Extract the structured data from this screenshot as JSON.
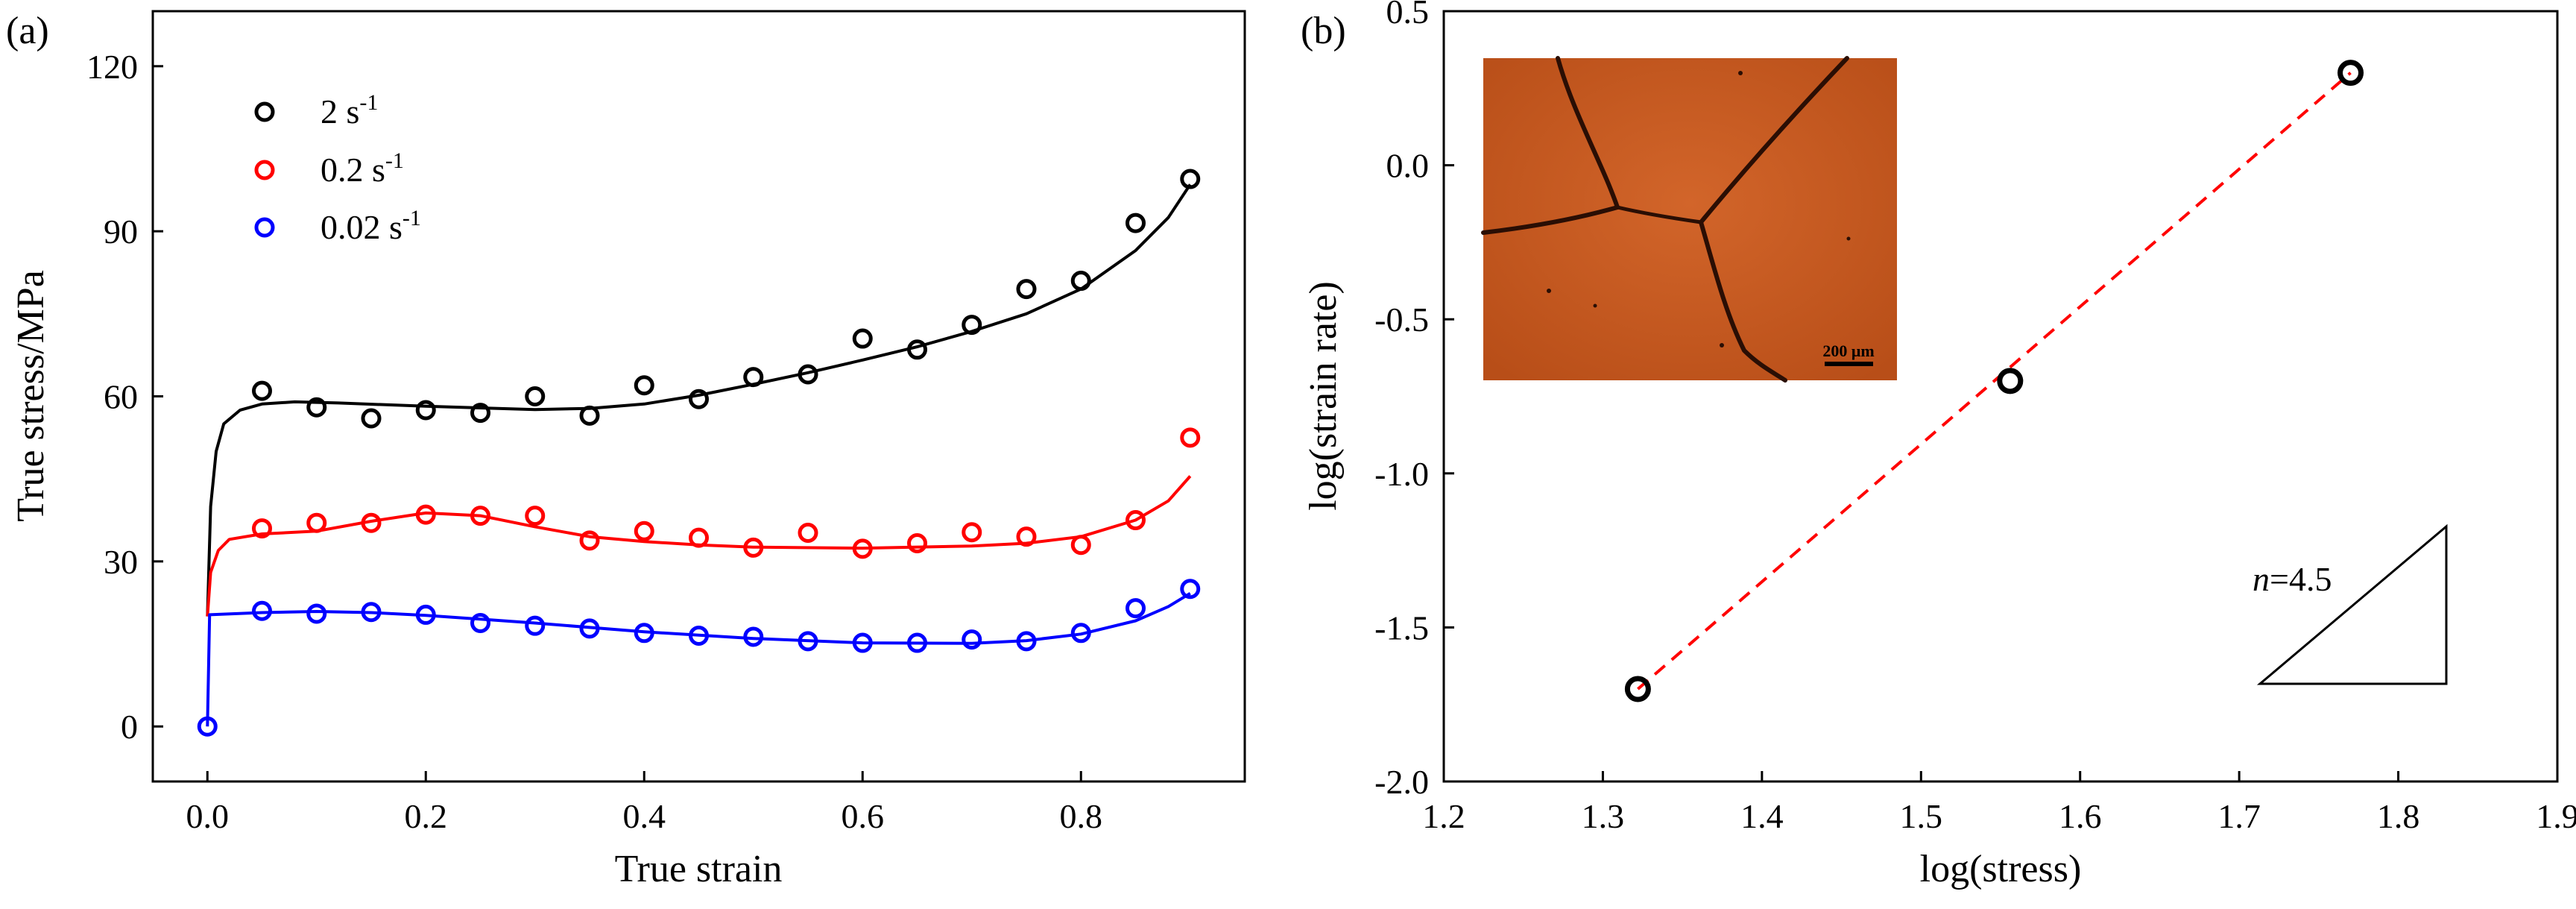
{
  "chart_data": [
    {
      "panel_label": "(a)",
      "type": "line",
      "xlabel": "True strain",
      "ylabel": "True stress/MPa",
      "xlim": [
        -0.05,
        0.95
      ],
      "ylim": [
        -10,
        130
      ],
      "x_ticks": [
        "0.0",
        "0.2",
        "0.4",
        "0.6",
        "0.8"
      ],
      "x_tick_values": [
        0,
        0.2,
        0.4,
        0.6,
        0.8
      ],
      "y_ticks": [
        "0",
        "30",
        "60",
        "90",
        "120"
      ],
      "y_tick_values": [
        0,
        30,
        60,
        90,
        120
      ],
      "legend_position": "top-left",
      "series": [
        {
          "name": "2 s-1",
          "legend_base": "2 s",
          "legend_sup": "-1",
          "color": "#000000",
          "points": [
            [
              0.05,
              61
            ],
            [
              0.1,
              58
            ],
            [
              0.15,
              56
            ],
            [
              0.2,
              57.5
            ],
            [
              0.25,
              57
            ],
            [
              0.3,
              60
            ],
            [
              0.35,
              56.5
            ],
            [
              0.4,
              62
            ],
            [
              0.45,
              59.5
            ],
            [
              0.5,
              63.5
            ],
            [
              0.55,
              64
            ],
            [
              0.6,
              70.5
            ],
            [
              0.65,
              68.5
            ],
            [
              0.7,
              73
            ],
            [
              0.75,
              79.5
            ],
            [
              0.8,
              81
            ],
            [
              0.85,
              91.5
            ],
            [
              0.9,
              99.5
            ]
          ],
          "fit": [
            [
              0,
              20
            ],
            [
              0.003,
              40
            ],
            [
              0.008,
              50
            ],
            [
              0.015,
              55
            ],
            [
              0.03,
              57.5
            ],
            [
              0.05,
              58.6
            ],
            [
              0.08,
              59
            ],
            [
              0.12,
              58.8
            ],
            [
              0.2,
              58.2
            ],
            [
              0.3,
              57.6
            ],
            [
              0.35,
              57.8
            ],
            [
              0.4,
              58.6
            ],
            [
              0.45,
              60.2
            ],
            [
              0.5,
              62.2
            ],
            [
              0.55,
              64.3
            ],
            [
              0.6,
              66.6
            ],
            [
              0.65,
              69
            ],
            [
              0.7,
              71.8
            ],
            [
              0.75,
              75
            ],
            [
              0.8,
              79.5
            ],
            [
              0.85,
              86.5
            ],
            [
              0.88,
              92.5
            ],
            [
              0.9,
              98.5
            ]
          ]
        },
        {
          "name": "0.2 s-1",
          "legend_base": "0.2 s",
          "legend_sup": "-1",
          "color": "#ff0000",
          "points": [
            [
              0.05,
              36
            ],
            [
              0.1,
              37
            ],
            [
              0.15,
              37
            ],
            [
              0.2,
              38.5
            ],
            [
              0.25,
              38.3
            ],
            [
              0.3,
              38.3
            ],
            [
              0.35,
              33.8
            ],
            [
              0.4,
              35.5
            ],
            [
              0.45,
              34.3
            ],
            [
              0.5,
              32.5
            ],
            [
              0.55,
              35.2
            ],
            [
              0.6,
              32.3
            ],
            [
              0.65,
              33.3
            ],
            [
              0.7,
              35.3
            ],
            [
              0.75,
              34.5
            ],
            [
              0.8,
              33
            ],
            [
              0.85,
              37.5
            ],
            [
              0.9,
              52.5
            ]
          ],
          "fit": [
            [
              0,
              20
            ],
            [
              0.003,
              28
            ],
            [
              0.01,
              32
            ],
            [
              0.02,
              34
            ],
            [
              0.05,
              35
            ],
            [
              0.1,
              35.5
            ],
            [
              0.15,
              37.3
            ],
            [
              0.2,
              38.8
            ],
            [
              0.25,
              38.3
            ],
            [
              0.3,
              36.3
            ],
            [
              0.35,
              34.5
            ],
            [
              0.4,
              33.6
            ],
            [
              0.45,
              33
            ],
            [
              0.5,
              32.6
            ],
            [
              0.6,
              32.4
            ],
            [
              0.7,
              32.8
            ],
            [
              0.75,
              33.3
            ],
            [
              0.8,
              34.5
            ],
            [
              0.85,
              37.5
            ],
            [
              0.88,
              41
            ],
            [
              0.9,
              45.5
            ]
          ]
        },
        {
          "name": "0.02 s-1",
          "legend_base": "0.02 s",
          "legend_sup": "-1",
          "color": "#0000ff",
          "points": [
            [
              0,
              0
            ],
            [
              0.05,
              21
            ],
            [
              0.1,
              20.5
            ],
            [
              0.15,
              20.8
            ],
            [
              0.2,
              20.3
            ],
            [
              0.25,
              18.8
            ],
            [
              0.3,
              18.3
            ],
            [
              0.35,
              17.8
            ],
            [
              0.4,
              17
            ],
            [
              0.45,
              16.5
            ],
            [
              0.5,
              16.3
            ],
            [
              0.55,
              15.5
            ],
            [
              0.6,
              15.2
            ],
            [
              0.65,
              15.2
            ],
            [
              0.7,
              15.8
            ],
            [
              0.75,
              15.5
            ],
            [
              0.8,
              17
            ],
            [
              0.85,
              21.5
            ],
            [
              0.9,
              25
            ]
          ],
          "fit": [
            [
              0,
              0
            ],
            [
              0.002,
              20.3
            ],
            [
              0.05,
              20.7
            ],
            [
              0.1,
              20.9
            ],
            [
              0.15,
              20.7
            ],
            [
              0.2,
              20.2
            ],
            [
              0.3,
              18.8
            ],
            [
              0.4,
              17.2
            ],
            [
              0.5,
              16
            ],
            [
              0.6,
              15.2
            ],
            [
              0.7,
              15.1
            ],
            [
              0.75,
              15.6
            ],
            [
              0.8,
              16.8
            ],
            [
              0.85,
              19.2
            ],
            [
              0.88,
              21.8
            ],
            [
              0.9,
              24.2
            ]
          ]
        }
      ]
    },
    {
      "panel_label": "(b)",
      "type": "scatter",
      "xlabel": "log(stress)",
      "ylabel": "log(strain rate)",
      "xlim": [
        1.2,
        1.9
      ],
      "ylim": [
        -2.0,
        0.5
      ],
      "x_ticks": [
        "1.2",
        "1.3",
        "1.4",
        "1.5",
        "1.6",
        "1.7",
        "1.8",
        "1.9"
      ],
      "x_tick_values": [
        1.2,
        1.3,
        1.4,
        1.5,
        1.6,
        1.7,
        1.8,
        1.9
      ],
      "y_ticks": [
        "-2.0",
        "-1.5",
        "-1.0",
        "-0.5",
        "0.0",
        "0.5"
      ],
      "y_tick_values": [
        -2.0,
        -1.5,
        -1.0,
        -0.5,
        0.0,
        0.5
      ],
      "points": [
        [
          1.322,
          -1.7
        ],
        [
          1.556,
          -0.7
        ],
        [
          1.77,
          0.3
        ]
      ],
      "fit_line": {
        "color": "#ff0000",
        "style": "dashed",
        "x": [
          1.322,
          1.77
        ],
        "y": [
          -1.7,
          0.3
        ]
      },
      "slope_label_italic": "n",
      "slope_label_rest": "=4.5",
      "inset_micrograph": {
        "scale_bar_label": "200 μm",
        "color": "#c8591f"
      }
    }
  ]
}
